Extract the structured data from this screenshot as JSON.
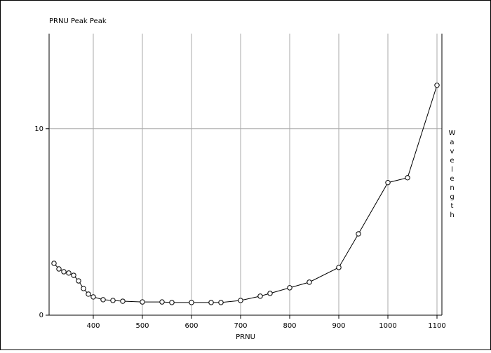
{
  "chart_data": {
    "type": "line",
    "title": "PRNU Peak Peak",
    "xlabel": "PRNU",
    "ylabel": "Wavelength",
    "x": [
      320,
      330,
      340,
      350,
      360,
      370,
      380,
      390,
      400,
      420,
      440,
      460,
      500,
      540,
      560,
      600,
      640,
      660,
      700,
      740,
      760,
      800,
      840,
      900,
      940,
      1000,
      1040,
      1100
    ],
    "series": [
      {
        "name": "PRNU Peak Peak",
        "color": "#000000",
        "values": [
          2.78,
          2.48,
          2.33,
          2.26,
          2.14,
          1.84,
          1.43,
          1.13,
          0.98,
          0.83,
          0.79,
          0.75,
          0.71,
          0.71,
          0.68,
          0.68,
          0.68,
          0.68,
          0.79,
          1.02,
          1.17,
          1.47,
          1.77,
          2.56,
          4.36,
          7.11,
          7.37,
          12.33
        ]
      }
    ],
    "xlim": [
      310,
      1110
    ],
    "xticks": [
      400,
      500,
      600,
      700,
      800,
      900,
      1000,
      1100
    ],
    "ylim": [
      0,
      15.1
    ],
    "yticks": [
      0,
      10
    ],
    "grid": true
  }
}
